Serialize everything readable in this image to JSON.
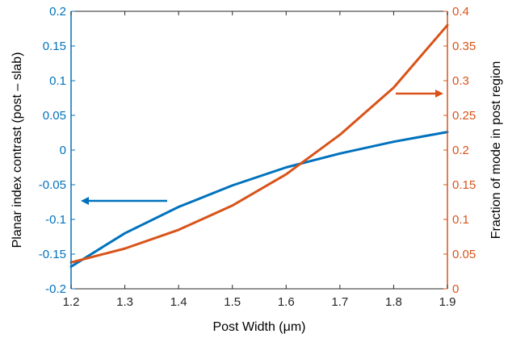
{
  "chart_data": {
    "type": "line",
    "xlabel": "Post Width (μm)",
    "ylabel_left": "Planar index contrast (post – slab)",
    "ylabel_right": "Fraction of mode in post region",
    "xlim": [
      1.2,
      1.9
    ],
    "ylim_left": [
      -0.2,
      0.2
    ],
    "ylim_right": [
      0,
      0.4
    ],
    "x_ticks": [
      "1.2",
      "1.3",
      "1.4",
      "1.5",
      "1.6",
      "1.7",
      "1.8",
      "1.9"
    ],
    "y_left_ticks": [
      "-0.2",
      "-0.15",
      "-0.1",
      "-0.05",
      "0",
      "0.05",
      "0.1",
      "0.15",
      "0.2"
    ],
    "y_right_ticks": [
      "0",
      "0.05",
      "0.1",
      "0.15",
      "0.2",
      "0.25",
      "0.3",
      "0.35",
      "0.4"
    ],
    "grid": false,
    "series": [
      {
        "axis": "left",
        "color": "#0072BD",
        "x": [
          1.2,
          1.3,
          1.4,
          1.5,
          1.6,
          1.7,
          1.8,
          1.9
        ],
        "values": [
          -0.168,
          -0.12,
          -0.082,
          -0.051,
          -0.025,
          -0.005,
          0.012,
          0.026
        ]
      },
      {
        "axis": "right",
        "color": "#D95319",
        "x": [
          1.2,
          1.3,
          1.4,
          1.5,
          1.6,
          1.7,
          1.8,
          1.9
        ],
        "values": [
          0.038,
          0.058,
          0.085,
          0.12,
          0.165,
          0.222,
          0.29,
          0.38
        ]
      }
    ],
    "annotations": [
      {
        "type": "arrow",
        "series": "left",
        "direction": "left",
        "color": "#0072BD"
      },
      {
        "type": "arrow",
        "series": "right",
        "direction": "right",
        "color": "#D95319"
      }
    ]
  }
}
